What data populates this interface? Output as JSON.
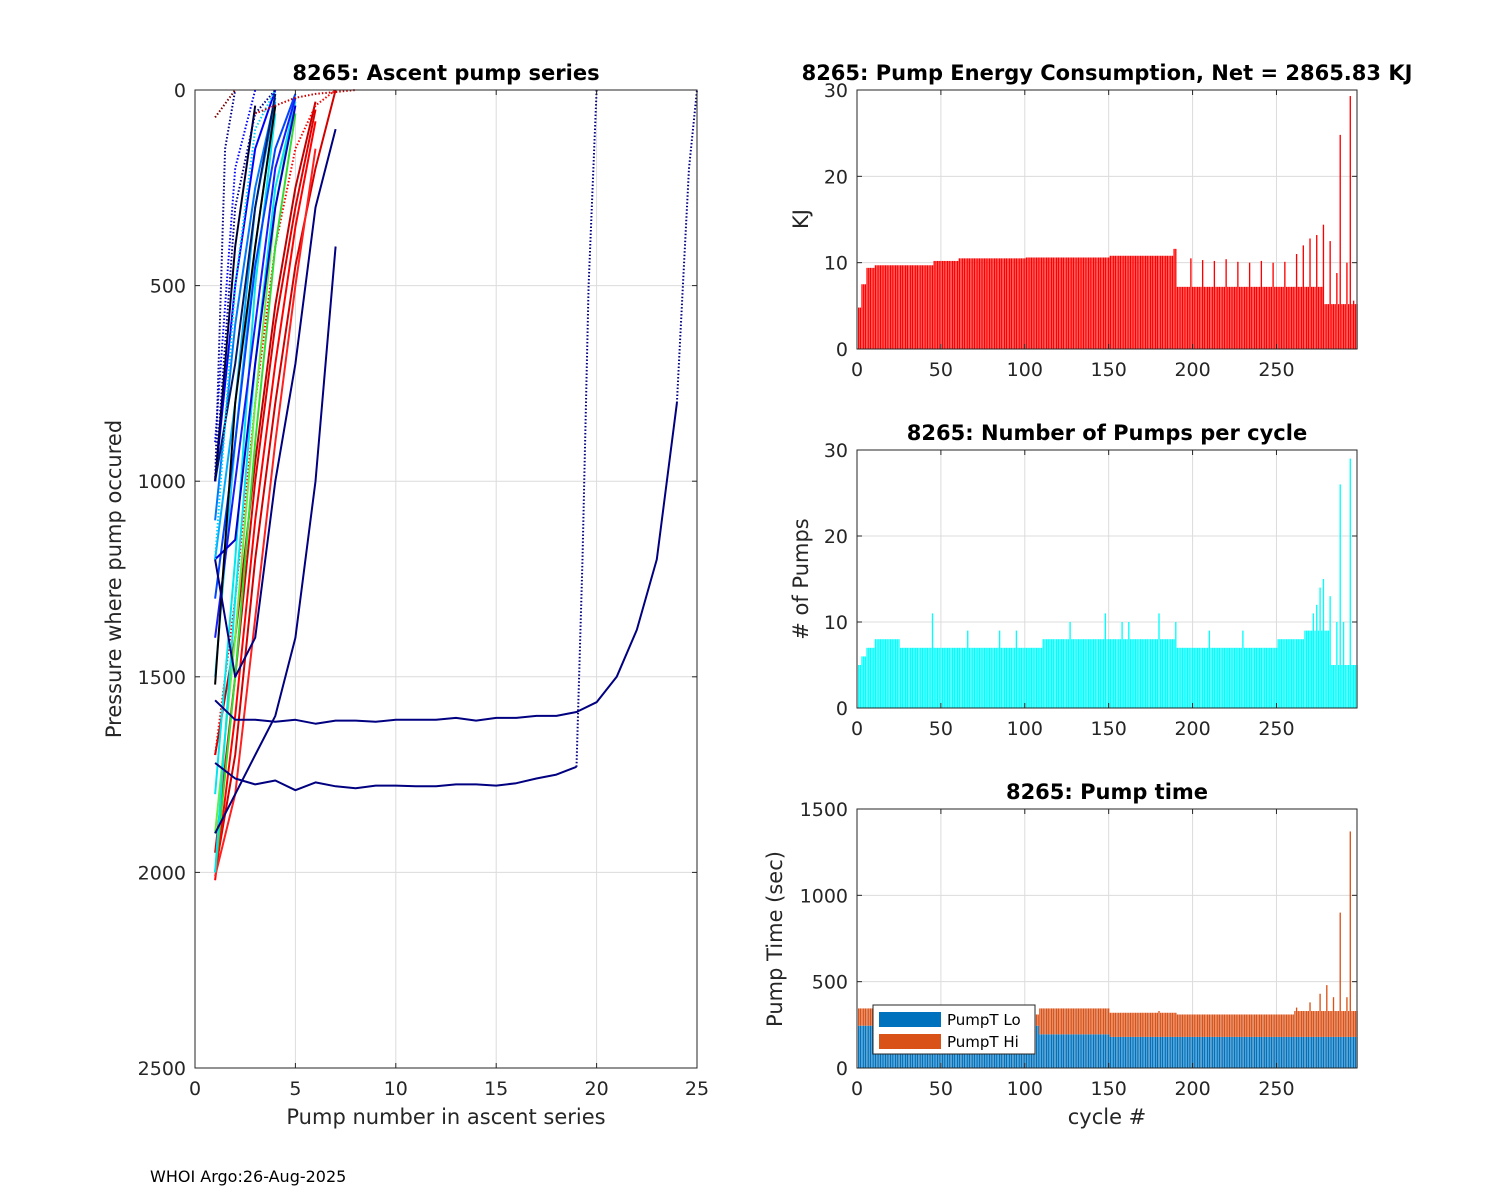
{
  "footer": "WHOI Argo:26-Aug-2025",
  "chart_data": [
    {
      "id": "ascent",
      "type": "line",
      "title": "8265: Ascent pump series",
      "xlabel": "Pump number in ascent series",
      "ylabel": "Pressure where pump occured",
      "xlim": [
        0,
        25
      ],
      "ylim": [
        0,
        2500
      ],
      "y_reversed": true,
      "grid": true,
      "xticks": [
        "0",
        "5",
        "10",
        "15",
        "20",
        "25"
      ],
      "yticks": [
        "0",
        "500",
        "1000",
        "1500",
        "2000",
        "2500"
      ],
      "series": [
        {
          "color": "#d40000",
          "style": "solid",
          "x": [
            1,
            2,
            3,
            4,
            5,
            6,
            7
          ],
          "y": [
            2000,
            1700,
            1200,
            800,
            450,
            200,
            0
          ]
        },
        {
          "color": "#ff0000",
          "style": "solid",
          "x": [
            1,
            2,
            3,
            4,
            5,
            6
          ],
          "y": [
            2020,
            1600,
            1100,
            700,
            350,
            80
          ]
        },
        {
          "color": "#e00000",
          "style": "solid",
          "x": [
            1,
            2,
            3,
            4,
            5,
            6
          ],
          "y": [
            1950,
            1500,
            1000,
            600,
            300,
            50
          ]
        },
        {
          "color": "#ff2020",
          "style": "solid",
          "x": [
            1,
            2,
            3,
            4,
            5,
            6
          ],
          "y": [
            2010,
            1800,
            1350,
            900,
            500,
            150
          ]
        },
        {
          "color": "#c00000",
          "style": "solid",
          "x": [
            1,
            2,
            3,
            4,
            5,
            6
          ],
          "y": [
            1700,
            1400,
            950,
            550,
            250,
            30
          ]
        },
        {
          "color": "#ff0000",
          "style": "dotted",
          "x": [
            1,
            2,
            3,
            4,
            5,
            6,
            7
          ],
          "y": [
            1700,
            1300,
            800,
            400,
            150,
            40,
            0
          ]
        },
        {
          "color": "#33dd33",
          "style": "solid",
          "x": [
            1,
            2,
            3,
            4,
            5
          ],
          "y": [
            2000,
            1500,
            900,
            400,
            60
          ]
        },
        {
          "color": "#66ee44",
          "style": "solid",
          "x": [
            1,
            2,
            3,
            4,
            5
          ],
          "y": [
            1900,
            1400,
            800,
            300,
            20
          ]
        },
        {
          "color": "#00e5ee",
          "style": "solid",
          "x": [
            1,
            2,
            3,
            4
          ],
          "y": [
            1800,
            1200,
            500,
            60
          ]
        },
        {
          "color": "#00e5ee",
          "style": "solid",
          "x": [
            1,
            2,
            3,
            4,
            5
          ],
          "y": [
            2000,
            1300,
            700,
            250,
            30
          ]
        },
        {
          "color": "#22ccff",
          "style": "solid",
          "x": [
            1,
            2,
            3,
            4
          ],
          "y": [
            1500,
            900,
            400,
            40
          ]
        },
        {
          "color": "#00aaff",
          "style": "solid",
          "x": [
            1,
            2,
            3,
            4
          ],
          "y": [
            1200,
            800,
            300,
            30
          ]
        },
        {
          "color": "#0077ff",
          "style": "solid",
          "x": [
            1,
            2,
            3,
            4
          ],
          "y": [
            1100,
            600,
            250,
            20
          ]
        },
        {
          "color": "#0044ff",
          "style": "solid",
          "x": [
            1,
            2,
            3,
            4,
            5
          ],
          "y": [
            1300,
            900,
            450,
            150,
            10
          ]
        },
        {
          "color": "#0000ff",
          "style": "solid",
          "x": [
            1,
            2,
            3,
            4
          ],
          "y": [
            1000,
            500,
            150,
            0
          ]
        },
        {
          "color": "#1a1aff",
          "style": "solid",
          "x": [
            1,
            2,
            3,
            4,
            5
          ],
          "y": [
            1400,
            1000,
            600,
            200,
            20
          ]
        },
        {
          "color": "#0000cc",
          "style": "solid",
          "x": [
            1,
            2,
            3,
            4,
            5
          ],
          "y": [
            1200,
            1150,
            700,
            300,
            40
          ]
        },
        {
          "color": "#001a66",
          "style": "solid",
          "x": [
            1,
            2,
            3,
            4
          ],
          "y": [
            1000,
            700,
            300,
            10
          ]
        },
        {
          "color": "#000000",
          "style": "solid",
          "x": [
            1,
            2,
            3,
            4
          ],
          "y": [
            1520,
            800,
            400,
            40
          ]
        },
        {
          "color": "#000033",
          "style": "solid",
          "x": [
            1,
            2,
            3
          ],
          "y": [
            1000,
            400,
            40
          ]
        },
        {
          "color": "#000080",
          "style": "dotted",
          "x": [
            1,
            2,
            3,
            4
          ],
          "y": [
            1000,
            300,
            60,
            0
          ]
        },
        {
          "color": "#0000ff",
          "style": "dotted",
          "x": [
            1,
            2,
            3
          ],
          "y": [
            900,
            200,
            0
          ]
        },
        {
          "color": "#00ccff",
          "style": "dotted",
          "x": [
            1,
            2,
            3,
            4
          ],
          "y": [
            1200,
            500,
            100,
            0
          ]
        },
        {
          "color": "#7a0000",
          "style": "dotted",
          "x": [
            1,
            2
          ],
          "y": [
            70,
            0
          ]
        },
        {
          "color": "#cc0000",
          "style": "dotted",
          "x": [
            3,
            4,
            5,
            6,
            7,
            8
          ],
          "y": [
            60,
            40,
            20,
            10,
            5,
            0
          ]
        },
        {
          "color": "#000080",
          "style": "dotted",
          "x": [
            1,
            1.5,
            2
          ],
          "y": [
            1000,
            150,
            0
          ]
        },
        {
          "color": "#000080",
          "style": "solid",
          "x": [
            1,
            2,
            3,
            4,
            5,
            6,
            7
          ],
          "y": [
            1200,
            1500,
            1400,
            1000,
            700,
            300,
            100
          ]
        },
        {
          "color": "#000080",
          "style": "solid",
          "x": [
            1,
            2,
            3,
            4,
            5,
            6,
            7
          ],
          "y": [
            1900,
            1800,
            1700,
            1600,
            1400,
            1000,
            400
          ]
        },
        {
          "color": "#000080",
          "style": "solid",
          "x": [
            1,
            2,
            3,
            4,
            5,
            6,
            7,
            8,
            9,
            10,
            11,
            12,
            13,
            14,
            15,
            16,
            17,
            18,
            19,
            20,
            21,
            22,
            23,
            24
          ],
          "y": [
            1560,
            1610,
            1610,
            1615,
            1610,
            1620,
            1612,
            1612,
            1615,
            1610,
            1610,
            1610,
            1605,
            1612,
            1605,
            1605,
            1600,
            1600,
            1590,
            1565,
            1500,
            1380,
            1200,
            800
          ]
        },
        {
          "color": "#000080",
          "style": "solid",
          "x": [
            1,
            2,
            3,
            4,
            5,
            6,
            7,
            8,
            9,
            10,
            11,
            12,
            13,
            14,
            15,
            16,
            17,
            18,
            19
          ],
          "y": [
            1720,
            1760,
            1775,
            1765,
            1790,
            1770,
            1780,
            1785,
            1778,
            1778,
            1780,
            1780,
            1775,
            1775,
            1778,
            1772,
            1760,
            1750,
            1730
          ]
        },
        {
          "color": "#000080",
          "style": "dotted",
          "x": [
            19,
            19.3,
            19.6,
            20
          ],
          "y": [
            1730,
            1200,
            500,
            0
          ]
        },
        {
          "color": "#000080",
          "style": "dotted",
          "x": [
            24,
            24.3,
            24.6,
            25
          ],
          "y": [
            800,
            500,
            200,
            0
          ]
        }
      ]
    },
    {
      "id": "energy",
      "type": "bar",
      "title": "8265: Pump Energy Consumption,  Net = 2865.83 KJ",
      "xlabel": "",
      "ylabel": "KJ",
      "xlim": [
        0,
        298
      ],
      "ylim": [
        0,
        30
      ],
      "grid": true,
      "xticks": [
        "0",
        "50",
        "100",
        "150",
        "200",
        "250"
      ],
      "yticks": [
        "0",
        "10",
        "20",
        "30"
      ],
      "color": "#ff0000",
      "values_by_segment": [
        {
          "from": 1,
          "to": 2,
          "value": 4.8
        },
        {
          "from": 3,
          "to": 5,
          "value": 7.5
        },
        {
          "from": 6,
          "to": 10,
          "value": 9.4
        },
        {
          "from": 11,
          "to": 45,
          "value": 9.7
        },
        {
          "from": 46,
          "to": 60,
          "value": 10.2
        },
        {
          "from": 61,
          "to": 100,
          "value": 10.5
        },
        {
          "from": 101,
          "to": 150,
          "value": 10.6
        },
        {
          "from": 151,
          "to": 188,
          "value": 10.8
        },
        {
          "from": 189,
          "to": 190,
          "value": 11.6
        },
        {
          "from": 191,
          "to": 278,
          "value": 7.2
        },
        {
          "from": 279,
          "to": 298,
          "value": 5.2
        }
      ],
      "spikes": [
        {
          "x": 199,
          "value": 10.5
        },
        {
          "x": 206,
          "value": 10.3
        },
        {
          "x": 213,
          "value": 10.2
        },
        {
          "x": 220,
          "value": 10.4
        },
        {
          "x": 227,
          "value": 10.1
        },
        {
          "x": 234,
          "value": 10.0
        },
        {
          "x": 241,
          "value": 10.2
        },
        {
          "x": 248,
          "value": 10.0
        },
        {
          "x": 255,
          "value": 10.1
        },
        {
          "x": 262,
          "value": 11.0
        },
        {
          "x": 266,
          "value": 12.0
        },
        {
          "x": 270,
          "value": 12.8
        },
        {
          "x": 274,
          "value": 13.2
        },
        {
          "x": 278,
          "value": 14.4
        },
        {
          "x": 282,
          "value": 12.5
        },
        {
          "x": 286,
          "value": 8.8
        },
        {
          "x": 288,
          "value": 24.8
        },
        {
          "x": 292,
          "value": 10.0
        },
        {
          "x": 294,
          "value": 29.3
        },
        {
          "x": 296,
          "value": 5.6
        }
      ]
    },
    {
      "id": "pumps",
      "type": "bar",
      "title": "8265: Number of Pumps per cycle",
      "xlabel": "",
      "ylabel": "# of Pumps",
      "xlim": [
        0,
        298
      ],
      "ylim": [
        0,
        30
      ],
      "grid": true,
      "xticks": [
        "0",
        "50",
        "100",
        "150",
        "200",
        "250"
      ],
      "yticks": [
        "0",
        "10",
        "20",
        "30"
      ],
      "color": "#00ffff",
      "values_by_segment": [
        {
          "from": 1,
          "to": 2,
          "value": 5
        },
        {
          "from": 3,
          "to": 5,
          "value": 6
        },
        {
          "from": 6,
          "to": 10,
          "value": 7
        },
        {
          "from": 11,
          "to": 25,
          "value": 8
        },
        {
          "from": 26,
          "to": 60,
          "value": 7
        },
        {
          "from": 61,
          "to": 110,
          "value": 7
        },
        {
          "from": 111,
          "to": 190,
          "value": 8
        },
        {
          "from": 191,
          "to": 250,
          "value": 7
        },
        {
          "from": 251,
          "to": 266,
          "value": 8
        },
        {
          "from": 267,
          "to": 282,
          "value": 9
        },
        {
          "from": 283,
          "to": 298,
          "value": 5
        }
      ],
      "spikes": [
        {
          "x": 45,
          "value": 11
        },
        {
          "x": 66,
          "value": 9
        },
        {
          "x": 85,
          "value": 9
        },
        {
          "x": 95,
          "value": 9
        },
        {
          "x": 127,
          "value": 10
        },
        {
          "x": 148,
          "value": 11
        },
        {
          "x": 158,
          "value": 10
        },
        {
          "x": 162,
          "value": 10
        },
        {
          "x": 180,
          "value": 11
        },
        {
          "x": 190,
          "value": 10
        },
        {
          "x": 210,
          "value": 9
        },
        {
          "x": 230,
          "value": 9
        },
        {
          "x": 268,
          "value": 9
        },
        {
          "x": 272,
          "value": 11
        },
        {
          "x": 274,
          "value": 12
        },
        {
          "x": 276,
          "value": 14
        },
        {
          "x": 278,
          "value": 15
        },
        {
          "x": 282,
          "value": 13
        },
        {
          "x": 286,
          "value": 10
        },
        {
          "x": 288,
          "value": 26
        },
        {
          "x": 290,
          "value": 10
        },
        {
          "x": 294,
          "value": 29
        }
      ]
    },
    {
      "id": "pumptime",
      "type": "bar",
      "stacked": true,
      "title": "8265: Pump time",
      "xlabel": "cycle #",
      "ylabel": "Pump Time (sec)",
      "xlim": [
        0,
        298
      ],
      "ylim": [
        0,
        1500
      ],
      "grid": true,
      "xticks": [
        "0",
        "50",
        "100",
        "150",
        "200",
        "250"
      ],
      "yticks": [
        "0",
        "500",
        "1000",
        "1500"
      ],
      "legend": {
        "position": "lower-left",
        "entries": [
          "PumpT Lo",
          "PumpT Hi"
        ]
      },
      "series": [
        {
          "name": "PumpT Lo",
          "color": "#0072bd",
          "values_by_segment": [
            {
              "from": 1,
              "to": 108,
              "value": 245
            },
            {
              "from": 109,
              "to": 150,
              "value": 195
            },
            {
              "from": 151,
              "to": 298,
              "value": 180
            }
          ]
        },
        {
          "name": "PumpT Hi",
          "color": "#d95319",
          "values_by_segment": [
            {
              "from": 1,
              "to": 20,
              "value": 100
            },
            {
              "from": 21,
              "to": 108,
              "value": 65
            },
            {
              "from": 109,
              "to": 150,
              "value": 150
            },
            {
              "from": 151,
              "to": 190,
              "value": 140
            },
            {
              "from": 191,
              "to": 260,
              "value": 130
            },
            {
              "from": 261,
              "to": 298,
              "value": 150
            }
          ],
          "spikes": [
            {
              "x": 180,
              "value": 150
            },
            {
              "x": 262,
              "value": 170
            },
            {
              "x": 270,
              "value": 200
            },
            {
              "x": 276,
              "value": 250
            },
            {
              "x": 280,
              "value": 300
            },
            {
              "x": 284,
              "value": 230
            },
            {
              "x": 288,
              "value": 720
            },
            {
              "x": 292,
              "value": 230
            },
            {
              "x": 294,
              "value": 1190
            }
          ]
        }
      ]
    }
  ]
}
